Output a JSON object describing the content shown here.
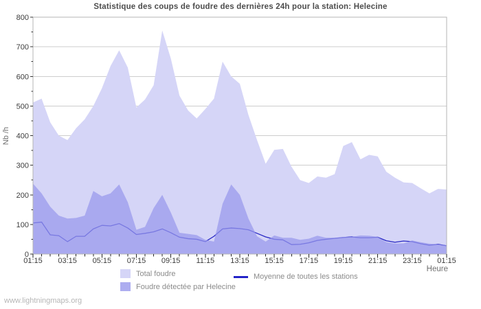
{
  "title": "Statistique des coups de foudre des dernières 24h pour la station: Helecine",
  "watermark": "www.lightningmaps.org",
  "axes": {
    "ylabel": "Nb /h",
    "xlabel": "Heure"
  },
  "legend": [
    {
      "label": "Total foudre",
      "color": "#d5d5f7",
      "marker": "square"
    },
    {
      "label": "Moyenne de toutes les stations",
      "color": "#2323c8",
      "marker": "line"
    },
    {
      "label": "Foudre détectée par Helecine",
      "color": "#adadf0",
      "marker": "square"
    }
  ],
  "chart_data": {
    "type": "area",
    "title": "Statistique des coups de foudre des dernières 24h pour la station: Helecine",
    "xlabel": "Heure",
    "ylabel": "Nb /h",
    "ylim": [
      0,
      800
    ],
    "y_ticks": [
      0,
      100,
      200,
      300,
      400,
      500,
      600,
      700,
      800
    ],
    "y_minor_step": 50,
    "grid": true,
    "legend_position": "bottom",
    "x_axis": {
      "start": "01:15",
      "end": "01:15",
      "interval_minutes": 30,
      "span_hours": 24
    },
    "x_tick_labels": [
      "01:15",
      "03:15",
      "05:15",
      "07:15",
      "09:15",
      "11:15",
      "13:15",
      "15:15",
      "17:15",
      "19:15",
      "21:15",
      "23:15",
      "01:15"
    ],
    "series": [
      {
        "name": "Total foudre",
        "type": "area",
        "color": "#d5d5f7",
        "values": [
          512,
          525,
          445,
          400,
          385,
          425,
          455,
          500,
          560,
          635,
          688,
          630,
          495,
          522,
          570,
          755,
          660,
          535,
          485,
          458,
          490,
          525,
          650,
          600,
          575,
          470,
          385,
          305,
          352,
          355,
          295,
          250,
          240,
          262,
          258,
          270,
          365,
          378,
          320,
          335,
          330,
          278,
          258,
          242,
          240,
          222,
          205,
          220,
          218
        ]
      },
      {
        "name": "Foudre détectée par Helecine",
        "type": "area",
        "color": "#a9a9ef",
        "fill": "rgba(152,152,236,0.72)",
        "values": [
          238,
          205,
          160,
          130,
          120,
          122,
          130,
          213,
          195,
          205,
          235,
          175,
          82,
          92,
          155,
          200,
          140,
          72,
          68,
          64,
          48,
          42,
          170,
          235,
          200,
          120,
          60,
          42,
          63,
          55,
          55,
          48,
          52,
          62,
          55,
          55,
          58,
          58,
          63,
          62,
          58,
          40,
          36,
          36,
          46,
          40,
          35,
          33,
          30
        ]
      },
      {
        "name": "Moyenne de toutes les stations",
        "type": "line",
        "color": "#2626c4",
        "values": [
          105,
          108,
          65,
          62,
          42,
          60,
          60,
          85,
          97,
          95,
          103,
          88,
          66,
          70,
          75,
          85,
          72,
          57,
          52,
          50,
          42,
          60,
          85,
          88,
          86,
          82,
          70,
          58,
          50,
          48,
          32,
          33,
          38,
          46,
          50,
          53,
          56,
          58,
          55,
          55,
          57,
          45,
          40,
          44,
          42,
          35,
          30,
          33,
          28
        ]
      }
    ]
  }
}
